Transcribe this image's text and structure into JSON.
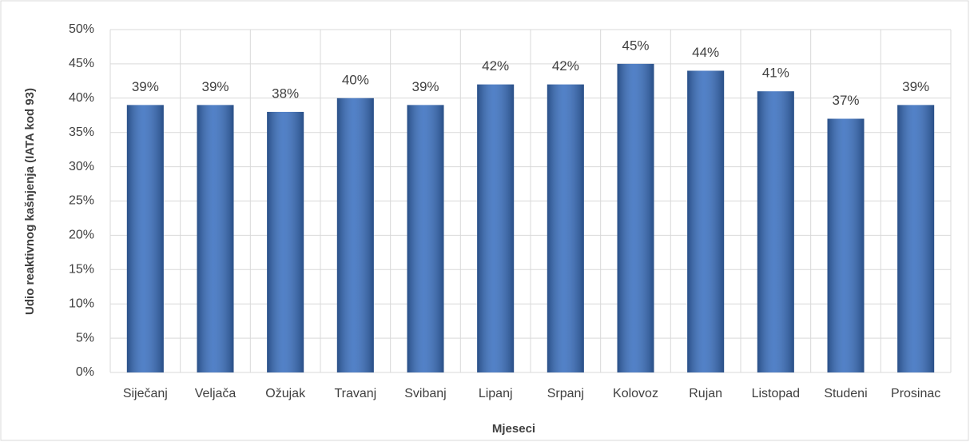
{
  "chart_data": {
    "type": "bar",
    "categories": [
      "Siječanj",
      "Veljača",
      "Ožujak",
      "Travanj",
      "Svibanj",
      "Lipanj",
      "Srpanj",
      "Kolovoz",
      "Rujan",
      "Listopad",
      "Studeni",
      "Prosinac"
    ],
    "values": [
      39,
      39,
      38,
      40,
      39,
      42,
      42,
      45,
      44,
      41,
      37,
      39
    ],
    "value_labels": [
      "39%",
      "39%",
      "38%",
      "40%",
      "39%",
      "42%",
      "42%",
      "45%",
      "44%",
      "41%",
      "37%",
      "39%"
    ],
    "color": "#3a70c0",
    "x_label": "Mjeseci",
    "y_label": "Udio reaktivnog kašnjenja (IATA kod 93)",
    "ylim": [
      0,
      50
    ],
    "yticks": [
      {
        "value": 0,
        "label": "0%"
      },
      {
        "value": 5,
        "label": "5%"
      },
      {
        "value": 10,
        "label": "10%"
      },
      {
        "value": 15,
        "label": "15%"
      },
      {
        "value": 20,
        "label": "20%"
      },
      {
        "value": 25,
        "label": "25%"
      },
      {
        "value": 30,
        "label": "30%"
      },
      {
        "value": 35,
        "label": "35%"
      },
      {
        "value": 40,
        "label": "40%"
      },
      {
        "value": 45,
        "label": "45%"
      },
      {
        "value": 50,
        "label": "50%"
      }
    ],
    "grid": true
  }
}
